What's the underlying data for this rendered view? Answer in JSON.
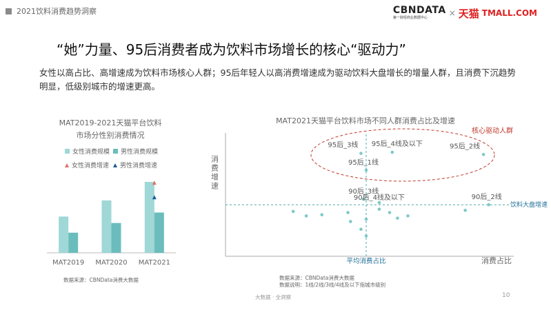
{
  "header": {
    "section_title": "2021饮料消费趋势洞察"
  },
  "logo": {
    "cbn_main": "CBNDATA",
    "cbn_sub": "第一财经商业数据中心",
    "times": "×",
    "tmall_cn": "天猫",
    "tmall_en": "TMALL.COM"
  },
  "main_title": "“她”力量、95后消费者成为饮料市场增长的核心“驱动力”",
  "description": "女性以高占比、高增速成为饮料市场核心人群；95后年轻人以高消费增速成为驱动饮料大盘增长的增量人群，且消费下沉趋势明显，低级别城市的增速更高。",
  "colors": {
    "female_bar": "#9fd8d6",
    "male_bar": "#6bbdbd",
    "female_growth": "#e0716a",
    "male_growth": "#1f5a95",
    "scatter_point": "#7cc9c7",
    "highlight_ellipse": "#c0392b",
    "avg_line": "#4aaaa8"
  },
  "left_chart": {
    "title_line1": "MAT2019-2021天猫平台饮料",
    "title_line2": "市场分性别消费情况",
    "legend": {
      "female_scale": "女性消费规模",
      "male_scale": "男性消费规模",
      "female_growth": "女性消费增速",
      "male_growth": "男性消费增速"
    },
    "source": "数据来源：CBNData消费大数据"
  },
  "right_chart": {
    "title": "MAT2021天猫平台饮料市场不同人群消费占比及增速",
    "y_label": "消费增速",
    "x_label": "消费占比",
    "avg_x_label": "平均消费占比",
    "avg_y_label": "饮料大盘增速",
    "highlight_label": "核心驱动人群",
    "source_line1": "数据来源：CBNData消费大数据",
    "source_line2": "数据说明：1线/2线/3线/4线及以下指城市级别"
  },
  "chart_data": [
    {
      "type": "bar",
      "title": "MAT2019-2021天猫平台饮料市场分性别消费情况",
      "categories": [
        "MAT2019",
        "MAT2020",
        "MAT2021"
      ],
      "series": [
        {
          "name": "女性消费规模",
          "values": [
            45,
            65,
            88
          ]
        },
        {
          "name": "男性消费规模",
          "values": [
            25,
            37,
            50
          ]
        }
      ],
      "growth_markers": [
        {
          "name": "女性消费增速",
          "category": "MAT2021",
          "value": 87
        },
        {
          "name": "男性消费增速",
          "category": "MAT2021",
          "value": 69
        }
      ],
      "ylim": [
        0,
        100
      ]
    },
    {
      "type": "scatter",
      "title": "MAT2021天猫平台饮料市场不同人群消费占比及增速",
      "xlabel": "消费占比",
      "ylabel": "消费增速",
      "xlim": [
        0,
        100
      ],
      "ylim": [
        0,
        100
      ],
      "avg_x": 50,
      "avg_y": 40,
      "points": [
        {
          "label": "95后_3线",
          "x": 48,
          "y": 86
        },
        {
          "label": "95后_4线及以下",
          "x": 60,
          "y": 87
        },
        {
          "label": "95后_2线",
          "x": 95,
          "y": 85
        },
        {
          "label": "95后_1线",
          "x": 50,
          "y": 71
        },
        {
          "label": "90后_3线",
          "x": 49,
          "y": 45
        },
        {
          "label": "90后_4线及以下",
          "x": 55,
          "y": 42
        },
        {
          "label": "90后_2线",
          "x": 97,
          "y": 40
        },
        {
          "label": "",
          "x": 22,
          "y": 34
        },
        {
          "label": "",
          "x": 27,
          "y": 30
        },
        {
          "label": "",
          "x": 33,
          "y": 31
        },
        {
          "label": "",
          "x": 43,
          "y": 33
        },
        {
          "label": "",
          "x": 44,
          "y": 25
        },
        {
          "label": "",
          "x": 50,
          "y": 27
        },
        {
          "label": "",
          "x": 48,
          "y": 18
        },
        {
          "label": "",
          "x": 50,
          "y": 12
        },
        {
          "label": "",
          "x": 55,
          "y": 36
        },
        {
          "label": "",
          "x": 59,
          "y": 33
        },
        {
          "label": "",
          "x": 62,
          "y": 28
        },
        {
          "label": "",
          "x": 66,
          "y": 30
        },
        {
          "label": "",
          "x": 88,
          "y": 35
        }
      ],
      "highlight_group": "核心驱动人群"
    }
  ],
  "footer": {
    "brand": "大数据 · 全洞察",
    "page_number": "10"
  }
}
